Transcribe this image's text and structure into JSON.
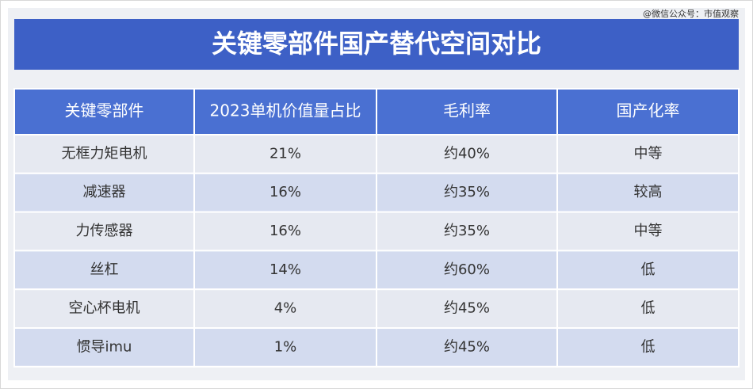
{
  "watermark": "@微信公众号：市值观察",
  "header": {
    "title": "关键零部件国产替代空间对比"
  },
  "table": {
    "columns": [
      "关键零部件",
      "2023单机价值量占比",
      "毛利率",
      "国产化率"
    ],
    "rows": [
      [
        "无框力矩电机",
        "21%",
        "约40%",
        "中等"
      ],
      [
        "减速器",
        "16%",
        "约35%",
        "较高"
      ],
      [
        "力传感器",
        "16%",
        "约35%",
        "中等"
      ],
      [
        "丝杠",
        "14%",
        "约60%",
        "低"
      ],
      [
        "空心杯电机",
        "4%",
        "约45%",
        "低"
      ],
      [
        "惯导imu",
        "1%",
        "约45%",
        "低"
      ]
    ]
  }
}
